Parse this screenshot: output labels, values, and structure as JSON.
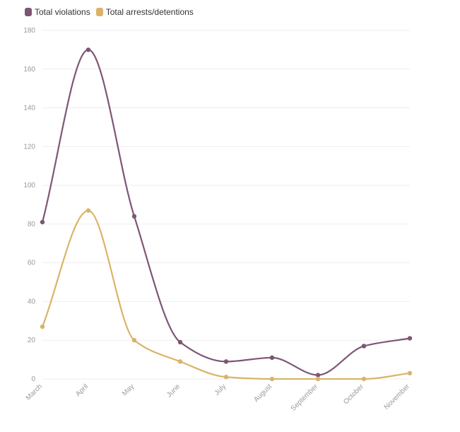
{
  "chart_data": {
    "type": "line",
    "categories": [
      "March",
      "April",
      "May",
      "June",
      "July",
      "August",
      "September",
      "October",
      "November"
    ],
    "series": [
      {
        "name": "Total violations",
        "color": "#7d5675",
        "values": [
          81,
          170,
          84,
          19,
          9,
          11,
          2,
          17,
          21
        ]
      },
      {
        "name": "Total arrests/detentions",
        "color": "#d9b468",
        "values": [
          27,
          87,
          20,
          9,
          1,
          0,
          0,
          0,
          3
        ]
      }
    ],
    "ylim": [
      0,
      180
    ],
    "yticks": [
      0,
      20,
      40,
      60,
      80,
      100,
      120,
      140,
      160,
      180
    ],
    "grid": true,
    "legend_position": "top-left"
  }
}
